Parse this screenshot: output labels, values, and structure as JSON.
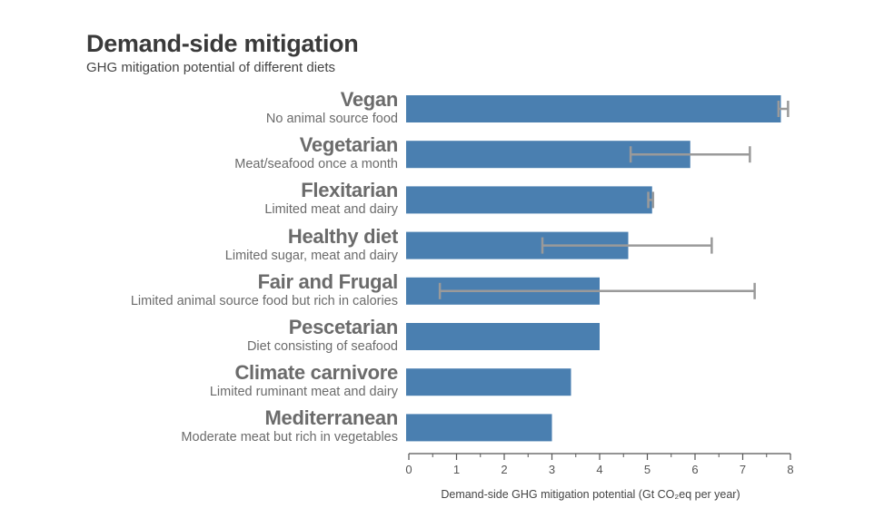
{
  "title": "Demand-side mitigation",
  "subtitle": "GHG mitigation potential of different diets",
  "chart_data": {
    "type": "bar",
    "orientation": "horizontal",
    "categories": [
      "Vegan",
      "Vegetarian",
      "Flexitarian",
      "Healthy diet",
      "Fair and Frugal",
      "Pescetarian",
      "Climate carnivore",
      "Mediterranean"
    ],
    "descriptions": [
      "No animal source food",
      "Meat/seafood once a month",
      "Limited meat and dairy",
      "Limited sugar, meat and dairy",
      "Limited animal source food but rich in calories",
      "Diet consisting of seafood",
      "Limited ruminant meat and dairy",
      "Moderate meat but rich in vegetables"
    ],
    "values": [
      7.8,
      5.9,
      5.1,
      4.6,
      4.0,
      4.0,
      3.4,
      3.0
    ],
    "error_low": [
      7.75,
      4.65,
      5.02,
      2.8,
      0.65,
      null,
      null,
      null
    ],
    "error_high": [
      7.95,
      7.15,
      5.12,
      6.35,
      7.25,
      null,
      null,
      null
    ],
    "xlabel": "Demand-side GHG mitigation potential (Gt CO₂eq per year)",
    "xlim": [
      0,
      8
    ],
    "xticks": [
      "0",
      "1",
      "2",
      "3",
      "4",
      "5",
      "6",
      "7",
      "8"
    ],
    "grid": false,
    "bar_color": "#4a7fb0",
    "error_color": "#9a9a9a"
  }
}
